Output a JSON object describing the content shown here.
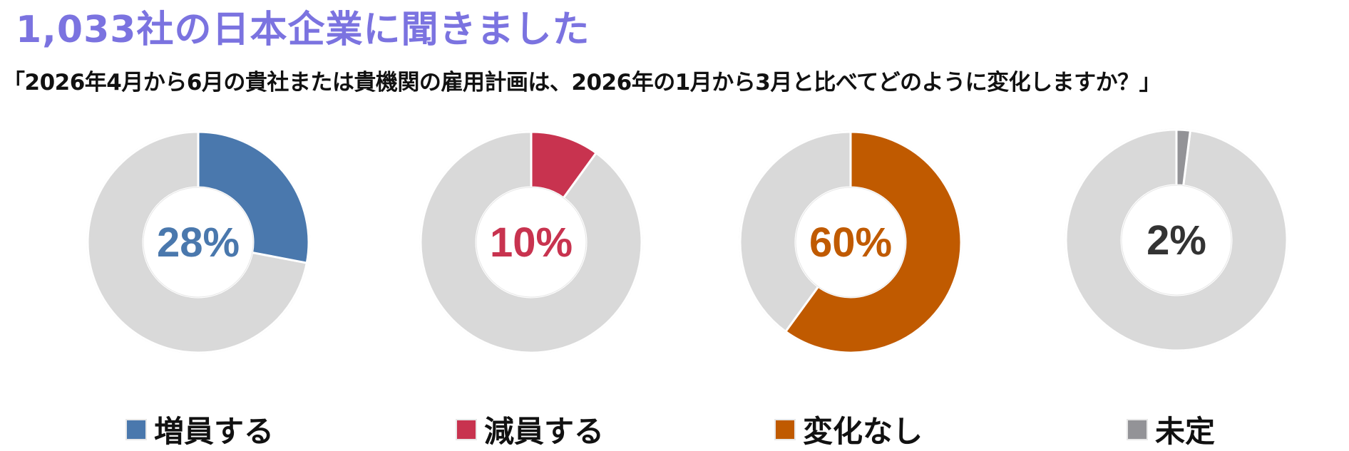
{
  "header": {
    "title": "1,033社の日本企業に聞きました",
    "question": "「2026年4月から6月の貴社または貴機関の雇用計画は、2026年の1月から3月と比べてどのように変化しますか？」"
  },
  "charts": [
    {
      "label": "28%",
      "legend": "増員する",
      "color": "#4a78ad",
      "textColor": "#4a78ad"
    },
    {
      "label": "10%",
      "legend": "減員する",
      "color": "#c8334f",
      "textColor": "#c8334f"
    },
    {
      "label": "60%",
      "legend": "変化なし",
      "color": "#c05a00",
      "textColor": "#c05a00"
    },
    {
      "label": "2%",
      "legend": "未定",
      "color": "#939397",
      "textColor": "#333333"
    }
  ],
  "colors": {
    "remainder": "#d9d9d9",
    "title": "#7b73e0"
  },
  "chart_data": {
    "type": "pie",
    "subtype": "donut",
    "title": "1,033社の日本企業に聞きました",
    "subtitle": "「2026年4月から6月の貴社または貴機関の雇用計画は、2026年の1月から3月と比べてどのように変化しますか？」",
    "categories": [
      "増員する",
      "減員する",
      "変化なし",
      "未定"
    ],
    "values": [
      28,
      10,
      60,
      2
    ],
    "unit": "%",
    "colors": [
      "#4a78ad",
      "#c8334f",
      "#c05a00",
      "#939397"
    ],
    "legend_position": "bottom",
    "layout": "four separate donut charts, each showing one category vs remainder (#d9d9d9)"
  }
}
